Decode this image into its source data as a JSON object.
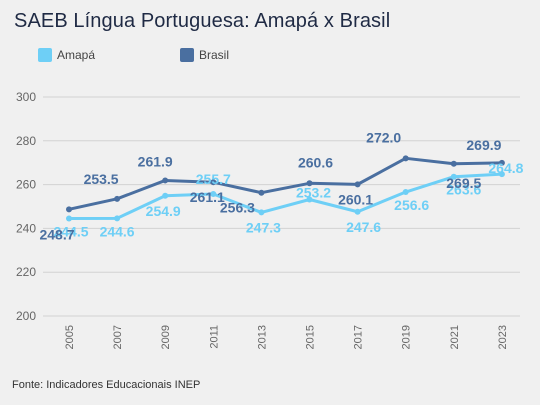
{
  "chart_data": {
    "type": "line",
    "title": "SAEB Língua Portuguesa: Amapá x Brasil",
    "x": [
      "2005",
      "2007",
      "2009",
      "2011",
      "2013",
      "2015",
      "2017",
      "2019",
      "2021",
      "2023"
    ],
    "ylim": [
      200,
      300
    ],
    "yticks": [
      "200",
      "220",
      "240",
      "260",
      "280",
      "300"
    ],
    "grid": true,
    "legend_position": "top-left",
    "series": [
      {
        "name": "Amapá",
        "color": "#6ecff6",
        "values": [
          244.5,
          244.6,
          254.9,
          255.7,
          247.3,
          253.2,
          247.6,
          256.6,
          263.6,
          264.8
        ],
        "labels": [
          "244.5",
          "244.6",
          "254.9",
          "255.7",
          "247.3",
          "253.2",
          "247.6",
          "256.6",
          "263.6",
          "264.8"
        ]
      },
      {
        "name": "Brasil",
        "color": "#4a6fa0",
        "values": [
          248.7,
          253.5,
          261.9,
          261.1,
          256.3,
          260.6,
          260.1,
          272.0,
          269.5,
          269.9
        ],
        "labels": [
          "248.7",
          "253.5",
          "261.9",
          "261.1",
          "256.3",
          "260.6",
          "260.1",
          "272.0",
          "269.5",
          "269.9"
        ]
      }
    ]
  },
  "footer": {
    "source": "Fonte: Indicadores Educacionais INEP"
  }
}
